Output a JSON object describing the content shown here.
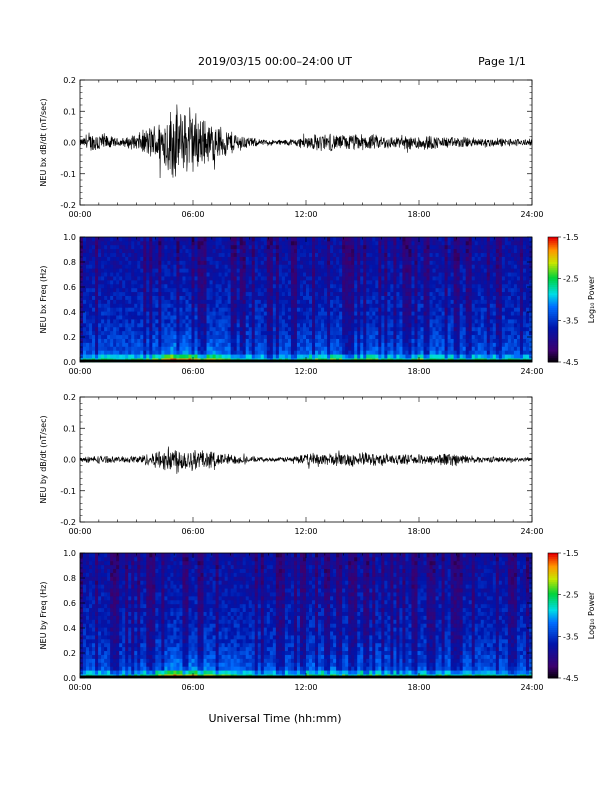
{
  "header": {
    "title": "2019/03/15  00:00–24:00 UT",
    "page": "Page 1/1"
  },
  "footer": {
    "xlabel": "Universal Time (hh:mm)"
  },
  "chart_data": [
    {
      "type": "line",
      "ylabel": "NEU bx dB/dt (nT/sec)",
      "x_ticks": [
        "00:00",
        "06:00",
        "12:00",
        "18:00",
        "24:00"
      ],
      "xlim_hours": [
        0,
        24
      ],
      "ylim": [
        -0.2,
        0.2
      ],
      "y_ticks": [
        "-0.2",
        "-0.1",
        "0.0",
        "0.1",
        "0.2"
      ],
      "envelope": {
        "hours": [
          0,
          0.5,
          1,
          1.5,
          2,
          2.5,
          3,
          3.5,
          4,
          4.5,
          5,
          5.5,
          6,
          6.5,
          7,
          7.5,
          8,
          8.5,
          9,
          9.5,
          10,
          10.5,
          11,
          11.5,
          12,
          12.5,
          13,
          13.5,
          14,
          14.5,
          15,
          15.5,
          16,
          16.5,
          17,
          17.5,
          18,
          18.5,
          19,
          19.5,
          20,
          20.5,
          21,
          21.5,
          22,
          22.5,
          23,
          23.5,
          24
        ],
        "amplitude": [
          0.012,
          0.03,
          0.045,
          0.025,
          0.015,
          0.02,
          0.03,
          0.05,
          0.07,
          0.1,
          0.14,
          0.11,
          0.12,
          0.09,
          0.07,
          0.06,
          0.045,
          0.03,
          0.02,
          0.012,
          0.01,
          0.01,
          0.012,
          0.015,
          0.025,
          0.03,
          0.032,
          0.03,
          0.028,
          0.03,
          0.03,
          0.028,
          0.026,
          0.024,
          0.022,
          0.025,
          0.03,
          0.028,
          0.022,
          0.02,
          0.02,
          0.02,
          0.018,
          0.017,
          0.016,
          0.015,
          0.014,
          0.013,
          0.012
        ]
      },
      "line_color": "#000000"
    },
    {
      "type": "heatmap",
      "ylabel": "NEU bx Freq (Hz)",
      "x_ticks": [
        "00:00",
        "06:00",
        "12:00",
        "18:00",
        "24:00"
      ],
      "xlim_hours": [
        0,
        24
      ],
      "ylim": [
        0,
        1.0
      ],
      "y_ticks": [
        "0.0",
        "0.2",
        "0.4",
        "0.6",
        "0.8",
        "1.0"
      ],
      "colorbar": {
        "label": "Log₁₀ Power",
        "range": [
          -4.5,
          -1.5
        ],
        "ticks": [
          "-1.5",
          "-2.5",
          "-3.5",
          "-4.5"
        ]
      },
      "activity": [
        0.1,
        0.15,
        0.2,
        0.15,
        0.1,
        0.12,
        0.15,
        0.25,
        0.35,
        0.5,
        0.7,
        0.6,
        0.6,
        0.5,
        0.45,
        0.4,
        0.3,
        0.2,
        0.15,
        0.1,
        0.1,
        0.1,
        0.12,
        0.15,
        0.25,
        0.3,
        0.3,
        0.3,
        0.28,
        0.3,
        0.3,
        0.28,
        0.26,
        0.24,
        0.22,
        0.25,
        0.35,
        0.3,
        0.22,
        0.2,
        0.2,
        0.18,
        0.17,
        0.16,
        0.15,
        0.14,
        0.13,
        0.12,
        0.1
      ]
    },
    {
      "type": "line",
      "ylabel": "NEU by dB/dt (nT/sec)",
      "x_ticks": [
        "00:00",
        "06:00",
        "12:00",
        "18:00",
        "24:00"
      ],
      "xlim_hours": [
        0,
        24
      ],
      "ylim": [
        -0.2,
        0.2
      ],
      "y_ticks": [
        "-0.2",
        "-0.1",
        "0.0",
        "0.1",
        "0.2"
      ],
      "envelope": {
        "hours": [
          0,
          0.5,
          1,
          1.5,
          2,
          2.5,
          3,
          3.5,
          4,
          4.5,
          5,
          5.5,
          6,
          6.5,
          7,
          7.5,
          8,
          8.5,
          9,
          9.5,
          10,
          10.5,
          11,
          11.5,
          12,
          12.5,
          13,
          13.5,
          14,
          14.5,
          15,
          15.5,
          16,
          16.5,
          17,
          17.5,
          18,
          18.5,
          19,
          19.5,
          20,
          20.5,
          21,
          21.5,
          22,
          22.5,
          23,
          23.5,
          24
        ],
        "amplitude": [
          0.008,
          0.012,
          0.015,
          0.012,
          0.01,
          0.012,
          0.015,
          0.02,
          0.03,
          0.04,
          0.055,
          0.04,
          0.045,
          0.035,
          0.03,
          0.025,
          0.02,
          0.015,
          0.012,
          0.008,
          0.007,
          0.007,
          0.01,
          0.015,
          0.02,
          0.025,
          0.024,
          0.022,
          0.024,
          0.026,
          0.025,
          0.024,
          0.022,
          0.02,
          0.018,
          0.016,
          0.018,
          0.02,
          0.02,
          0.025,
          0.022,
          0.015,
          0.012,
          0.01,
          0.01,
          0.009,
          0.008,
          0.008,
          0.007
        ]
      },
      "line_color": "#000000"
    },
    {
      "type": "heatmap",
      "ylabel": "NEU by Freq (Hz)",
      "x_ticks": [
        "00:00",
        "06:00",
        "12:00",
        "18:00",
        "24:00"
      ],
      "xlim_hours": [
        0,
        24
      ],
      "ylim": [
        0,
        1.0
      ],
      "y_ticks": [
        "0.0",
        "0.2",
        "0.4",
        "0.6",
        "0.8",
        "1.0"
      ],
      "colorbar": {
        "label": "Log₁₀ Power",
        "range": [
          -4.5,
          -1.5
        ],
        "ticks": [
          "-1.5",
          "-2.5",
          "-3.5",
          "-4.5"
        ]
      },
      "activity": [
        0.1,
        0.12,
        0.14,
        0.12,
        0.1,
        0.12,
        0.15,
        0.2,
        0.3,
        0.45,
        0.6,
        0.5,
        0.55,
        0.45,
        0.4,
        0.35,
        0.25,
        0.18,
        0.14,
        0.1,
        0.1,
        0.1,
        0.12,
        0.15,
        0.22,
        0.28,
        0.28,
        0.26,
        0.27,
        0.28,
        0.28,
        0.26,
        0.24,
        0.22,
        0.2,
        0.2,
        0.22,
        0.24,
        0.24,
        0.28,
        0.25,
        0.2,
        0.16,
        0.14,
        0.13,
        0.12,
        0.12,
        0.11,
        0.1
      ]
    }
  ]
}
